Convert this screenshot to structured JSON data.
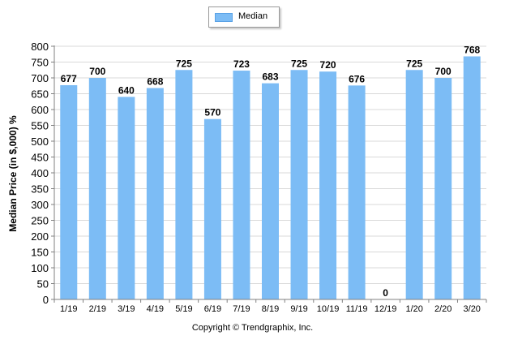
{
  "legend": {
    "label": "Median"
  },
  "copyright": "Copyright © Trendgraphix, Inc.",
  "chart_data": {
    "type": "bar",
    "title": "",
    "xlabel": "",
    "ylabel": "Median Price (in $,000) %",
    "categories": [
      "1/19",
      "2/19",
      "3/19",
      "4/19",
      "5/19",
      "6/19",
      "7/19",
      "8/19",
      "9/19",
      "10/19",
      "11/19",
      "12/19",
      "1/20",
      "2/20",
      "3/20"
    ],
    "series": [
      {
        "name": "Median",
        "values": [
          677,
          700,
          640,
          668,
          725,
          570,
          723,
          683,
          725,
          720,
          676,
          0,
          725,
          700,
          768
        ]
      }
    ],
    "ylim": [
      0,
      800
    ],
    "yticks": [
      0,
      50,
      100,
      150,
      200,
      250,
      300,
      350,
      400,
      450,
      500,
      550,
      600,
      650,
      700,
      750,
      800
    ],
    "grid": true,
    "legend_position": "top-center",
    "colors": {
      "bar": "#7cbcf5",
      "grid": "#d9d9d9",
      "axis": "#808080"
    }
  }
}
